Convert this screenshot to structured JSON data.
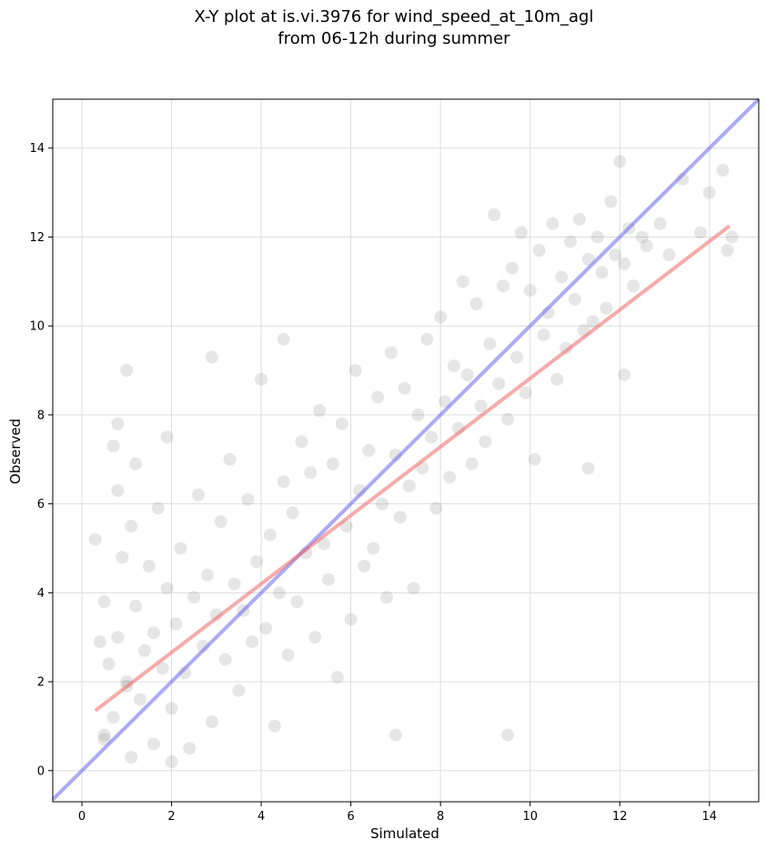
{
  "chart_data": {
    "type": "scatter",
    "title_lines": [
      "X-Y plot at is.vi.3976 for wind_speed_at_10m_agl",
      "from 06-12h during summer"
    ],
    "xlabel": "Simulated",
    "ylabel": "Observed",
    "xlim": [
      -0.65,
      15.1
    ],
    "ylim": [
      -0.7,
      15.1
    ],
    "xticks": [
      0,
      2,
      4,
      6,
      8,
      10,
      12,
      14
    ],
    "yticks": [
      0,
      2,
      4,
      6,
      8,
      10,
      12,
      14
    ],
    "grid": true,
    "point_color": "#808080",
    "point_alpha": 0.2,
    "series": [
      {
        "kind": "points",
        "x": [
          0.3,
          0.4,
          0.5,
          0.5,
          0.6,
          0.7,
          0.7,
          0.8,
          0.8,
          0.9,
          1.0,
          1.0,
          1.1,
          1.1,
          1.2,
          1.2,
          1.3,
          1.4,
          1.5,
          1.6,
          1.6,
          1.7,
          1.8,
          1.9,
          1.9,
          2.0,
          2.1,
          2.2,
          2.3,
          2.4,
          2.5,
          2.6,
          2.7,
          2.8,
          2.9,
          3.0,
          3.1,
          3.2,
          3.3,
          3.4,
          3.5,
          3.6,
          3.7,
          3.8,
          3.9,
          4.0,
          4.1,
          4.2,
          4.3,
          4.4,
          4.5,
          4.6,
          4.7,
          4.8,
          4.9,
          5.0,
          5.1,
          5.2,
          5.3,
          5.4,
          5.5,
          5.6,
          5.7,
          5.8,
          5.9,
          6.0,
          6.1,
          6.2,
          6.3,
          6.4,
          6.5,
          6.6,
          6.7,
          6.8,
          6.9,
          7.0,
          7.1,
          7.2,
          7.3,
          7.4,
          7.5,
          7.6,
          7.7,
          7.8,
          7.9,
          8.0,
          8.1,
          8.2,
          8.3,
          8.4,
          8.5,
          8.6,
          8.7,
          8.8,
          8.9,
          9.0,
          9.1,
          9.2,
          9.3,
          9.4,
          9.5,
          9.6,
          9.7,
          9.8,
          9.9,
          10.0,
          10.1,
          10.2,
          10.3,
          10.4,
          10.5,
          10.6,
          10.7,
          10.8,
          10.9,
          11.0,
          11.1,
          11.2,
          11.3,
          11.4,
          11.5,
          11.6,
          11.7,
          11.8,
          11.9,
          12.0,
          12.1,
          12.2,
          12.3,
          12.5,
          12.6,
          12.9,
          13.1,
          13.4,
          13.8,
          14.0,
          14.3,
          14.5,
          14.4,
          1.0,
          2.9,
          0.5,
          9.5,
          2.0,
          4.5,
          7.0,
          0.8,
          11.3,
          12.1
        ],
        "y": [
          5.2,
          2.9,
          3.8,
          0.8,
          2.4,
          1.2,
          7.3,
          3.0,
          6.3,
          4.8,
          9.0,
          2.0,
          5.5,
          0.3,
          3.7,
          6.9,
          1.6,
          2.7,
          4.6,
          3.1,
          0.6,
          5.9,
          2.3,
          4.1,
          7.5,
          1.4,
          3.3,
          5.0,
          2.2,
          0.5,
          3.9,
          6.2,
          2.8,
          4.4,
          1.1,
          3.5,
          5.6,
          2.5,
          7.0,
          4.2,
          1.8,
          3.6,
          6.1,
          2.9,
          4.7,
          8.8,
          3.2,
          5.3,
          1.0,
          4.0,
          6.5,
          2.6,
          5.8,
          3.8,
          7.4,
          4.9,
          6.7,
          3.0,
          8.1,
          5.1,
          4.3,
          6.9,
          2.1,
          7.8,
          5.5,
          3.4,
          9.0,
          6.3,
          4.6,
          7.2,
          5.0,
          8.4,
          6.0,
          3.9,
          9.4,
          7.1,
          5.7,
          8.6,
          6.4,
          4.1,
          8.0,
          6.8,
          9.7,
          7.5,
          5.9,
          10.2,
          8.3,
          6.6,
          9.1,
          7.7,
          11.0,
          8.9,
          6.9,
          10.5,
          8.2,
          7.4,
          9.6,
          12.5,
          8.7,
          10.9,
          7.9,
          11.3,
          9.3,
          12.1,
          8.5,
          10.8,
          7.0,
          11.7,
          9.8,
          10.3,
          12.3,
          8.8,
          11.1,
          9.5,
          11.9,
          10.6,
          12.4,
          9.9,
          11.5,
          10.1,
          12.0,
          11.2,
          10.4,
          12.8,
          11.6,
          13.7,
          11.4,
          12.2,
          10.9,
          12.0,
          11.8,
          12.3,
          11.6,
          13.3,
          12.1,
          13.0,
          13.5,
          12.0,
          11.7,
          1.9,
          9.3,
          0.7,
          0.8,
          0.2,
          9.7,
          0.8,
          7.8,
          6.8,
          8.9
        ]
      },
      {
        "kind": "line",
        "name": "",
        "color": "#6666ee",
        "alpha": 0.55,
        "x": [
          -0.65,
          15.1
        ],
        "y": [
          -0.65,
          15.1
        ]
      },
      {
        "kind": "line",
        "name": "",
        "color": "#ee6666",
        "alpha": 0.55,
        "x": [
          0.3,
          14.45
        ],
        "y": [
          1.35,
          12.25
        ]
      }
    ]
  }
}
